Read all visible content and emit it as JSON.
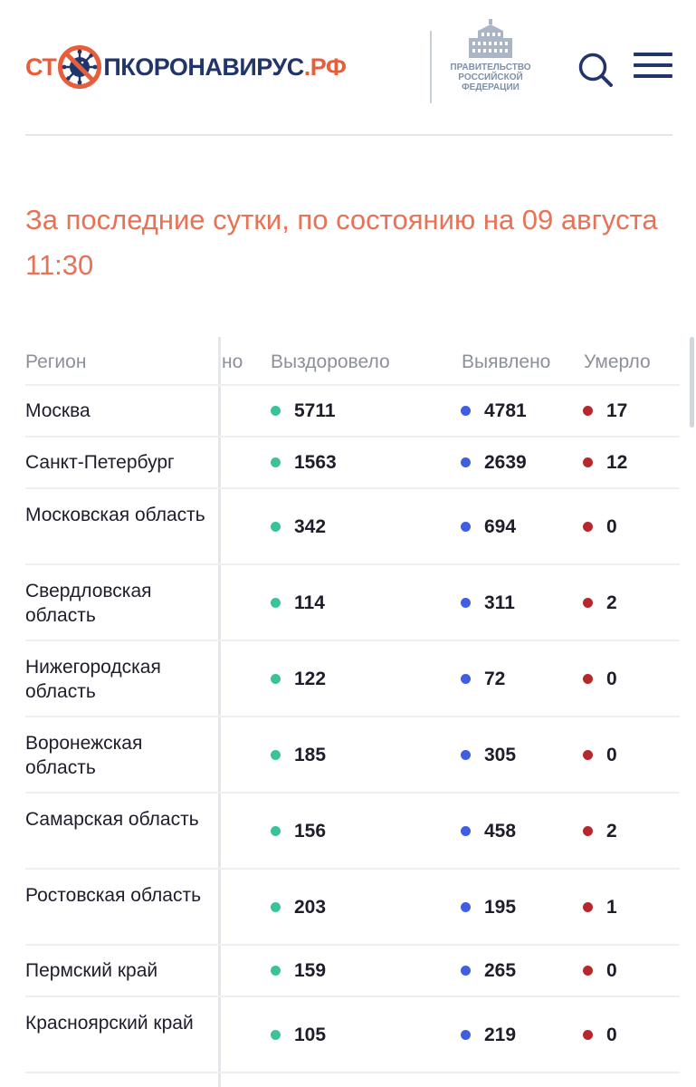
{
  "header": {
    "logo": {
      "part1": "СТ",
      "part2": "ПКОРОНАВИРУС",
      "part3": ".РФ"
    },
    "gov_label": [
      "ПРАВИТЕЛЬСТВО",
      "РОССИЙСКОЙ",
      "ФЕДЕРАЦИИ"
    ],
    "icons": {
      "search": "search-icon",
      "menu": "menu-icon",
      "virus": "virus-stop-icon",
      "gov": "government-building-icon"
    }
  },
  "title": "За последние сутки, по состоянию на 09 августа 11:30",
  "table": {
    "headers": {
      "region": "Регион",
      "hidden_partial": "но",
      "recovered": "Выздоровело",
      "detected": "Выявлено",
      "died": "Умерло"
    },
    "rows": [
      {
        "region": "Москва",
        "recovered": "5711",
        "detected": "4781",
        "died": "17"
      },
      {
        "region": "Санкт-Петербург",
        "recovered": "1563",
        "detected": "2639",
        "died": "12"
      },
      {
        "region": "Московская область",
        "recovered": "342",
        "detected": "694",
        "died": "0"
      },
      {
        "region": "Свердловская область",
        "recovered": "114",
        "detected": "311",
        "died": "2"
      },
      {
        "region": "Нижегородская область",
        "recovered": "122",
        "detected": "72",
        "died": "0"
      },
      {
        "region": "Воронежская область",
        "recovered": "185",
        "detected": "305",
        "died": "0"
      },
      {
        "region": "Самарская область",
        "recovered": "156",
        "detected": "458",
        "died": "2"
      },
      {
        "region": "Ростовская область",
        "recovered": "203",
        "detected": "195",
        "died": "1"
      },
      {
        "region": "Пермский край",
        "recovered": "159",
        "detected": "265",
        "died": "0"
      },
      {
        "region": "Красноярский край",
        "recovered": "105",
        "detected": "219",
        "died": "0"
      }
    ]
  },
  "colors": {
    "accent_orange": "#e85d3a",
    "navy": "#21356b",
    "recovered_dot": "#3cc29a",
    "detected_dot": "#3f5fe0",
    "died_dot": "#b5282b"
  }
}
